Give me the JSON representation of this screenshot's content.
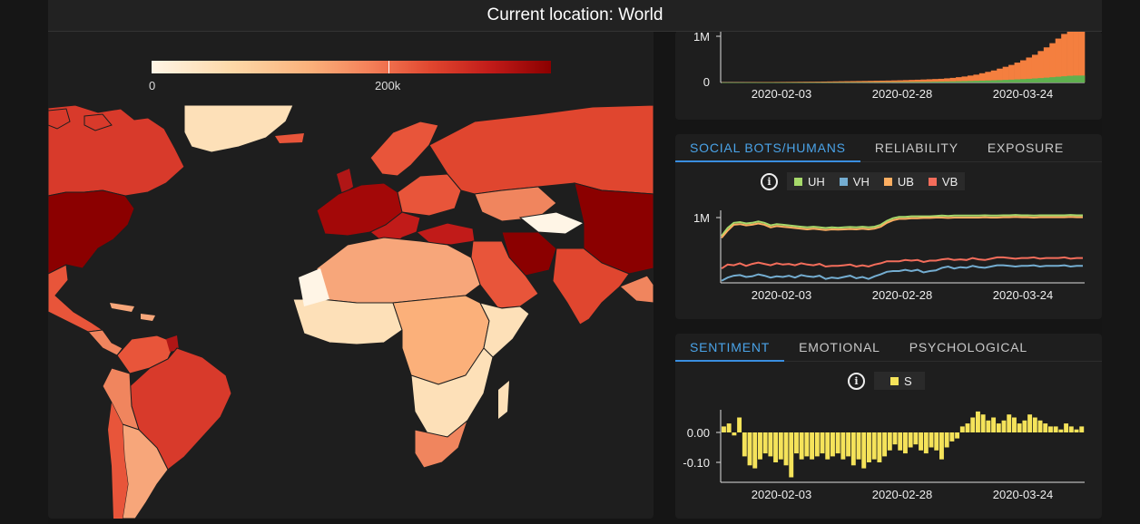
{
  "header": {
    "prefix": "Current location:",
    "location": "World"
  },
  "map": {
    "legend_min": "0",
    "legend_mid": "200k",
    "colors": {
      "low": "#fff5e6",
      "mid": "#f47f58",
      "high": "#8b0000"
    }
  },
  "volume_chart": {
    "ytick": "1M",
    "yzero": "0",
    "xticks": [
      "2020-02-03",
      "2020-02-28",
      "2020-03-24"
    ]
  },
  "social_card": {
    "tabs": [
      "SOCIAL BOTS/HUMANS",
      "RELIABILITY",
      "EXPOSURE"
    ],
    "active_tab": 0,
    "legend": [
      {
        "label": "UH",
        "color": "#a6d96a"
      },
      {
        "label": "VH",
        "color": "#74add1"
      },
      {
        "label": "UB",
        "color": "#fdae61"
      },
      {
        "label": "VB",
        "color": "#f46d5b"
      }
    ],
    "ytick": "1M",
    "xticks": [
      "2020-02-03",
      "2020-02-28",
      "2020-03-24"
    ]
  },
  "sentiment_card": {
    "tabs": [
      "SENTIMENT",
      "EMOTIONAL",
      "PSYCHOLOGICAL"
    ],
    "active_tab": 0,
    "legend": [
      {
        "label": "S",
        "color": "#f5e35a"
      }
    ],
    "yticks": [
      "0.00",
      "-0.10"
    ],
    "xticks": [
      "2020-02-03",
      "2020-02-28",
      "2020-03-24"
    ]
  },
  "chart_data": [
    {
      "type": "area",
      "title": "",
      "ylim": [
        0,
        1200000
      ],
      "series": [
        {
          "values": [
            5000,
            5000,
            6000,
            6000,
            7000,
            8000,
            9000,
            10000,
            10000,
            11000,
            12000,
            13000,
            14000,
            15000,
            16000,
            17000,
            18000,
            20000,
            22000,
            24000,
            26000,
            28000,
            30000,
            32000,
            34000,
            36000,
            38000,
            40000,
            42000,
            45000,
            48000,
            52000,
            56000,
            60000,
            65000,
            70000,
            75000,
            80000,
            90000,
            100000,
            115000,
            130000,
            150000,
            170000,
            200000,
            230000,
            260000,
            300000,
            340000,
            380000,
            430000,
            480000,
            540000,
            600000,
            680000,
            760000,
            850000,
            950000,
            1050000,
            1150000,
            1150000,
            1150000
          ]
        },
        {
          "values": [
            1000,
            1000,
            1000,
            1000,
            1000,
            1000,
            1500,
            1500,
            1500,
            2000,
            2000,
            2000,
            2500,
            2500,
            3000,
            3000,
            3500,
            4000,
            4000,
            4500,
            5000,
            5500,
            6000,
            6500,
            7000,
            7500,
            8000,
            8500,
            9000,
            10000,
            11000,
            12000,
            13000,
            14000,
            15000,
            16000,
            18000,
            20000,
            22000,
            24000,
            27000,
            30000,
            33000,
            36000,
            40000,
            44000,
            48000,
            52000,
            57000,
            62000,
            68000,
            74000,
            80000,
            88000,
            96000,
            105000,
            115000,
            125000,
            135000,
            145000,
            150000,
            150000
          ]
        }
      ]
    },
    {
      "type": "line",
      "title": "",
      "ylim": [
        0,
        1200000
      ],
      "series": [
        {
          "name": "UH",
          "values": [
            720000,
            840000,
            920000,
            930000,
            910000,
            920000,
            940000,
            920000,
            880000,
            900000,
            890000,
            880000,
            870000,
            860000,
            850000,
            860000,
            850000,
            840000,
            850000,
            845000,
            850000,
            855000,
            850000,
            860000,
            850000,
            860000,
            890000,
            950000,
            990000,
            1010000,
            1010000,
            1020000,
            1020000,
            1020000,
            1020000,
            1025000,
            1030000,
            1025000,
            1030000,
            1030000,
            1030000,
            1030000,
            1030000,
            1035000,
            1030000,
            1030000,
            1035000,
            1035000,
            1040000,
            1035000,
            1035000,
            1030000,
            1035000,
            1035000,
            1035000,
            1035000,
            1035000,
            1040000,
            1035000,
            1035000
          ]
        },
        {
          "name": "UB",
          "values": [
            690000,
            800000,
            890000,
            900000,
            880000,
            890000,
            910000,
            890000,
            850000,
            870000,
            860000,
            850000,
            840000,
            830000,
            820000,
            830000,
            820000,
            810000,
            820000,
            815000,
            820000,
            825000,
            820000,
            830000,
            820000,
            830000,
            860000,
            920000,
            960000,
            980000,
            980000,
            990000,
            990000,
            995000,
            995000,
            1000000,
            1000000,
            995000,
            1000000,
            1000000,
            1000000,
            1000000,
            1000000,
            1005000,
            1000000,
            1000000,
            1005000,
            1005000,
            1010000,
            1005000,
            1005000,
            1000000,
            1005000,
            1005000,
            1005000,
            1005000,
            1005000,
            1010000,
            1005000,
            1005000
          ]
        },
        {
          "name": "VB",
          "values": [
            220000,
            280000,
            270000,
            300000,
            260000,
            290000,
            310000,
            290000,
            270000,
            300000,
            280000,
            290000,
            270000,
            300000,
            280000,
            270000,
            290000,
            250000,
            260000,
            260000,
            270000,
            280000,
            250000,
            270000,
            250000,
            280000,
            300000,
            330000,
            330000,
            330000,
            350000,
            340000,
            350000,
            320000,
            340000,
            340000,
            360000,
            370000,
            350000,
            360000,
            350000,
            380000,
            360000,
            350000,
            370000,
            390000,
            390000,
            380000,
            370000,
            380000,
            380000,
            390000,
            370000,
            380000,
            380000,
            380000,
            390000,
            370000,
            380000,
            380000
          ]
        },
        {
          "name": "VH",
          "values": [
            30000,
            80000,
            110000,
            120000,
            90000,
            100000,
            130000,
            110000,
            80000,
            100000,
            90000,
            110000,
            80000,
            120000,
            100000,
            90000,
            110000,
            60000,
            80000,
            70000,
            90000,
            110000,
            70000,
            90000,
            60000,
            100000,
            130000,
            170000,
            180000,
            180000,
            200000,
            180000,
            200000,
            160000,
            180000,
            190000,
            230000,
            250000,
            220000,
            240000,
            230000,
            260000,
            240000,
            230000,
            250000,
            270000,
            270000,
            260000,
            250000,
            260000,
            260000,
            270000,
            250000,
            260000,
            260000,
            260000,
            270000,
            250000,
            260000,
            260000
          ]
        }
      ]
    },
    {
      "type": "bar",
      "title": "",
      "ylim": [
        -0.16,
        0.06
      ],
      "series": [
        {
          "name": "S",
          "values": [
            0.02,
            0.03,
            -0.01,
            0.05,
            -0.08,
            -0.11,
            -0.12,
            -0.09,
            -0.07,
            -0.08,
            -0.1,
            -0.09,
            -0.11,
            -0.15,
            -0.07,
            -0.09,
            -0.08,
            -0.09,
            -0.08,
            -0.07,
            -0.09,
            -0.08,
            -0.07,
            -0.09,
            -0.08,
            -0.11,
            -0.09,
            -0.12,
            -0.1,
            -0.09,
            -0.1,
            -0.08,
            -0.06,
            -0.04,
            -0.06,
            -0.07,
            -0.05,
            -0.04,
            -0.06,
            -0.07,
            -0.05,
            -0.06,
            -0.09,
            -0.05,
            -0.03,
            -0.02,
            0.02,
            0.03,
            0.05,
            0.07,
            0.06,
            0.04,
            0.05,
            0.03,
            0.04,
            0.06,
            0.05,
            0.03,
            0.04,
            0.06,
            0.05,
            0.04,
            0.03,
            0.02,
            0.02,
            0.01,
            0.03,
            0.02,
            0.01,
            0.02
          ]
        }
      ]
    }
  ]
}
